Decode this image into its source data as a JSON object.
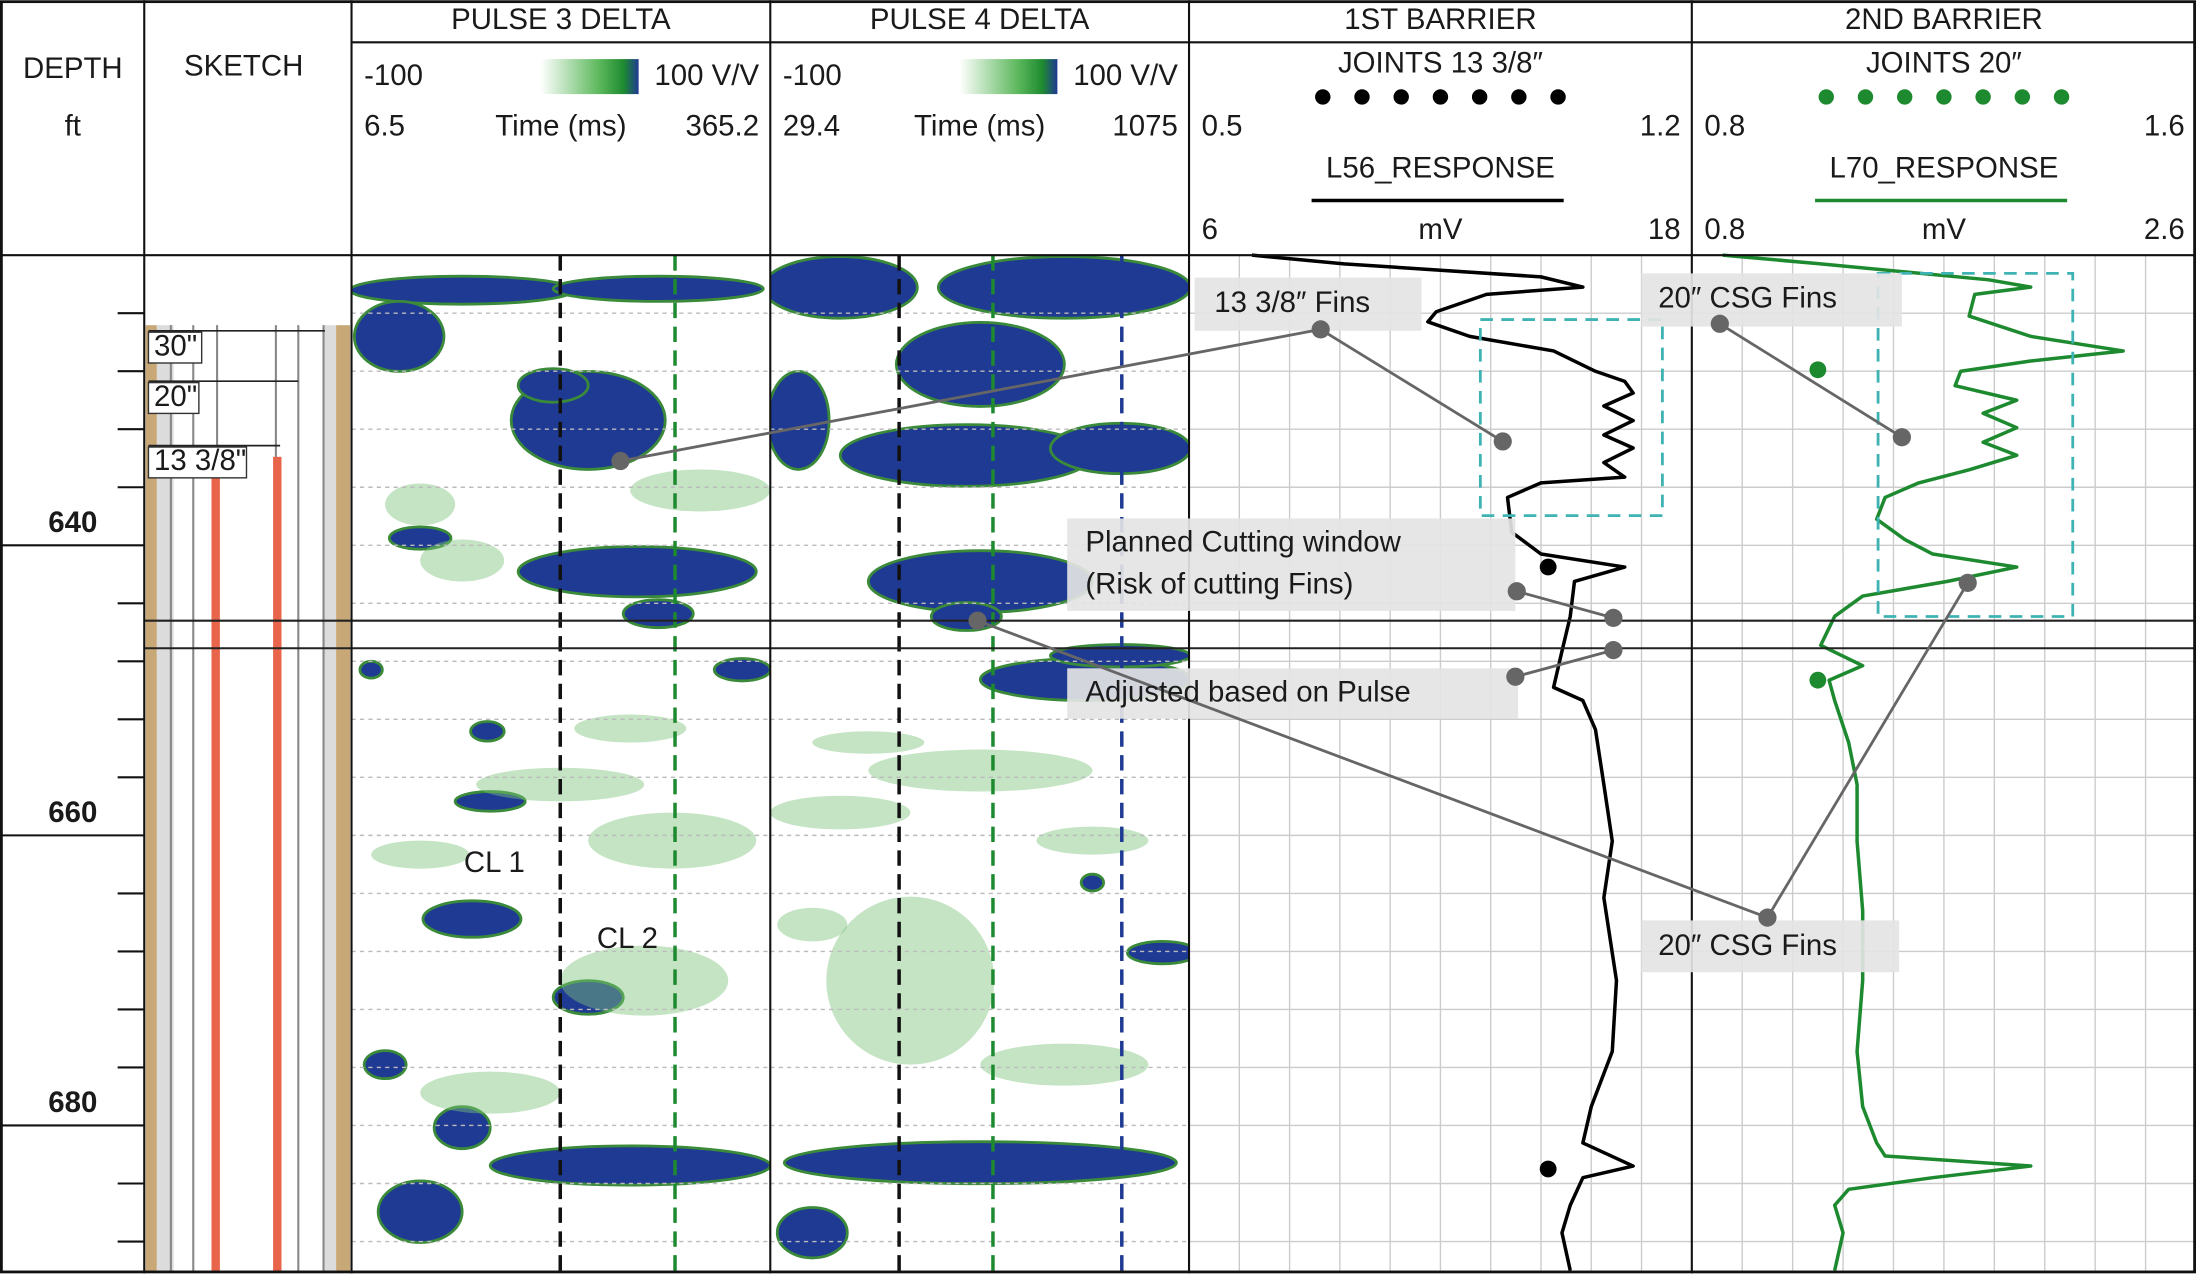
{
  "chart_data": [
    {
      "type": "depth",
      "title": "DEPTH",
      "unit": "ft",
      "ylim": [
        620,
        690
      ],
      "yticks": [
        640,
        660,
        680
      ],
      "minor_yticks": [
        624,
        628,
        632,
        636,
        644,
        648,
        652,
        656,
        664,
        668,
        672,
        676,
        684,
        688
      ],
      "window": [
        645.2,
        647.1
      ]
    },
    {
      "type": "sketch",
      "title": "SKETCH",
      "casings": [
        "30\"",
        "20\"",
        "13 3/8\""
      ]
    },
    {
      "type": "heatmap",
      "title": "PULSE 3 DELTA",
      "colorbar": [
        -100,
        {
          "value": 100,
          "label": "100 V/V"
        }
      ],
      "xlabel": "Time (ms)",
      "xlim": [
        6.5,
        365.2
      ],
      "markers": [
        {
          "value": 185.3,
          "color": "#111111"
        },
        {
          "value": 283.6,
          "color": "#1e8a30"
        }
      ],
      "labels": [
        "CL 1",
        "CL 2"
      ]
    },
    {
      "type": "heatmap",
      "title": "PULSE 4 DELTA",
      "colorbar": [
        -100,
        {
          "value": 100,
          "label": "100 V/V"
        }
      ],
      "xlabel": "Time (ms)",
      "xlim": [
        29.4,
        1075
      ],
      "markers": [
        {
          "value": 351.1,
          "color": "#111111"
        },
        {
          "value": 585.4,
          "color": "#1e8a30"
        },
        {
          "value": 907.1,
          "color": "#1f3a93"
        }
      ]
    },
    {
      "type": "line",
      "title": "1ST BARRIER",
      "joints": {
        "name": "JOINTS 13 3/8″",
        "color": "#000000",
        "xlim": [
          0.5,
          1.2
        ],
        "depth": [
          641.5,
          683.0
        ],
        "values": [
          1.0,
          1.0
        ]
      },
      "series": [
        {
          "name": "L56_RESPONSE",
          "color": "#000000",
          "unit": "mV",
          "xlim": [
            6,
            18
          ],
          "depth": [
            620.0,
            620.6,
            621.5,
            622.2,
            622.7,
            623.9,
            624.6,
            625.6,
            626.6,
            628.0,
            628.7,
            629.5,
            630.4,
            631.4,
            632.4,
            633.3,
            634.3,
            635.3,
            635.7,
            636.7,
            639.1,
            640.6,
            641.5,
            642.5,
            644.9,
            647.3,
            649.8,
            650.7,
            652.7,
            656.5,
            660.4,
            664.3,
            670.0,
            674.9,
            678.7,
            681.2,
            682.8,
            683.6,
            685.5,
            687.4,
            690.0
          ],
          "values": [
            7.5,
            9.7,
            14.4,
            15.4,
            13.1,
            11.9,
            11.7,
            12.7,
            14.7,
            15.7,
            16.4,
            16.6,
            15.9,
            16.6,
            15.9,
            16.6,
            15.9,
            16.4,
            14.4,
            13.6,
            13.7,
            14.4,
            16.4,
            15.2,
            15.1,
            14.9,
            14.7,
            15.4,
            15.7,
            15.9,
            16.1,
            15.9,
            16.2,
            16.1,
            15.6,
            15.4,
            16.6,
            15.4,
            15.1,
            14.9,
            15.1
          ]
        }
      ]
    },
    {
      "type": "line",
      "title": "2ND BARRIER",
      "joints": {
        "name": "JOINTS 20″",
        "color": "#1e8a30",
        "xlim": [
          0.8,
          1.6
        ],
        "depth": [
          627.9,
          649.3
        ],
        "values": [
          1.0,
          1.0
        ]
      },
      "series": [
        {
          "name": "L70_RESPONSE",
          "color": "#1e8a30",
          "unit": "mV",
          "xlim": [
            0.8,
            2.6
          ],
          "depth": [
            620.0,
            620.6,
            621.7,
            622.2,
            622.7,
            624.2,
            625.6,
            626.6,
            627.3,
            628.0,
            629.0,
            630.0,
            630.9,
            631.9,
            632.9,
            633.8,
            634.8,
            635.7,
            636.7,
            638.2,
            639.6,
            640.6,
            641.5,
            642.5,
            643.5,
            644.9,
            646.9,
            648.3,
            649.3,
            650.7,
            653.6,
            656.5,
            660.4,
            665.2,
            670.0,
            674.9,
            678.7,
            681.2,
            682.1,
            682.8,
            683.6,
            684.4,
            685.5,
            687.4,
            690.0
          ],
          "values": [
            0.91,
            1.26,
            1.86,
            2.01,
            1.81,
            1.79,
            2.01,
            2.34,
            2.01,
            1.76,
            1.74,
            1.96,
            1.84,
            1.96,
            1.84,
            1.96,
            1.79,
            1.61,
            1.49,
            1.46,
            1.56,
            1.66,
            1.96,
            1.71,
            1.41,
            1.31,
            1.26,
            1.41,
            1.29,
            1.31,
            1.36,
            1.39,
            1.39,
            1.41,
            1.41,
            1.39,
            1.41,
            1.46,
            1.49,
            2.01,
            1.66,
            1.36,
            1.31,
            1.34,
            1.31
          ]
        }
      ]
    }
  ],
  "annotations": [
    "13 3/8″ Fins",
    [
      "Planned Cutting window",
      "(Risk of cutting Fins)"
    ],
    "Adjusted based on Pulse",
    "20″ CSG Fins",
    "20″ CSG Fins"
  ]
}
